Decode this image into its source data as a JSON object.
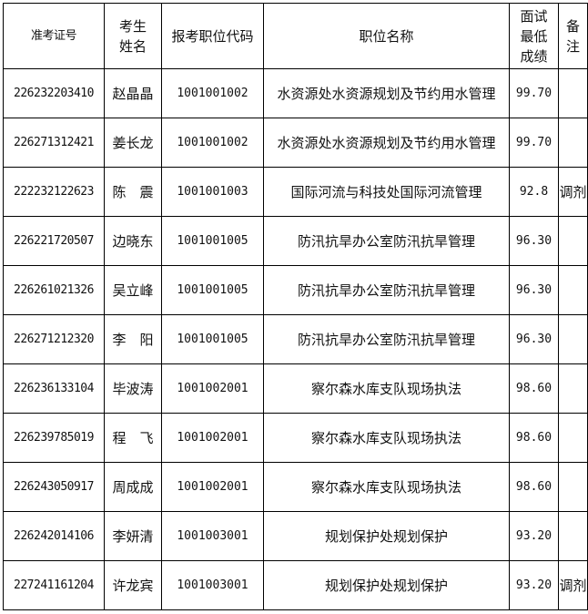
{
  "headers": {
    "exam_id": "准考证号",
    "name": [
      "考生",
      "姓名"
    ],
    "position_code": "报考职位代码",
    "position_name": "职位名称",
    "min_score": [
      "面试",
      "最低",
      "成绩"
    ],
    "remark": [
      "备",
      "注"
    ]
  },
  "rows": [
    {
      "exam_id": "226232203410",
      "name": "赵晶晶",
      "position_code": "1001001002",
      "position_name": "水资源处水资源规划及节约用水管理",
      "min_score": "99.70",
      "remark": ""
    },
    {
      "exam_id": "226271312421",
      "name": "姜长龙",
      "position_code": "1001001002",
      "position_name": "水资源处水资源规划及节约用水管理",
      "min_score": "99.70",
      "remark": ""
    },
    {
      "exam_id": "222232122623",
      "name": "陈　震",
      "position_code": "1001001003",
      "position_name": "国际河流与科技处国际河流管理",
      "min_score": "92.8",
      "remark": "调剂"
    },
    {
      "exam_id": "226221720507",
      "name": "边晓东",
      "position_code": "1001001005",
      "position_name": "防汛抗旱办公室防汛抗旱管理",
      "min_score": "96.30",
      "remark": ""
    },
    {
      "exam_id": "226261021326",
      "name": "吴立峰",
      "position_code": "1001001005",
      "position_name": "防汛抗旱办公室防汛抗旱管理",
      "min_score": "96.30",
      "remark": ""
    },
    {
      "exam_id": "226271212320",
      "name": "李　阳",
      "position_code": "1001001005",
      "position_name": "防汛抗旱办公室防汛抗旱管理",
      "min_score": "96.30",
      "remark": ""
    },
    {
      "exam_id": "226236133104",
      "name": "毕波涛",
      "position_code": "1001002001",
      "position_name": "察尔森水库支队现场执法",
      "min_score": "98.60",
      "remark": ""
    },
    {
      "exam_id": "226239785019",
      "name": "程　飞",
      "position_code": "1001002001",
      "position_name": "察尔森水库支队现场执法",
      "min_score": "98.60",
      "remark": ""
    },
    {
      "exam_id": "226243050917",
      "name": "周成成",
      "position_code": "1001002001",
      "position_name": "察尔森水库支队现场执法",
      "min_score": "98.60",
      "remark": ""
    },
    {
      "exam_id": "226242014106",
      "name": "李妍清",
      "position_code": "1001003001",
      "position_name": "规划保护处规划保护",
      "min_score": "93.20",
      "remark": ""
    },
    {
      "exam_id": "227241161204",
      "name": "许龙宾",
      "position_code": "1001003001",
      "position_name": "规划保护处规划保护",
      "min_score": "93.20",
      "remark": "调剂"
    }
  ]
}
